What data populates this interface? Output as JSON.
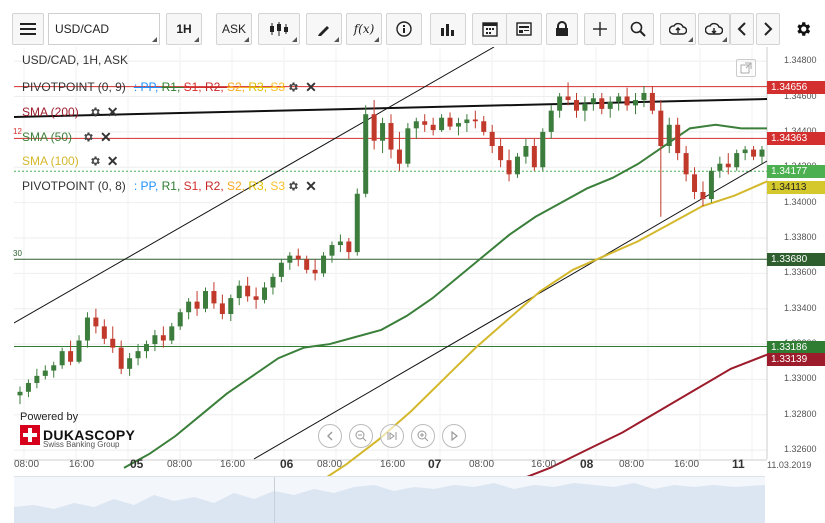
{
  "toolbar": {
    "menu_icon": "hamburger-icon",
    "symbol": "USD/CAD",
    "timeframe": "1H",
    "side": "ASK",
    "fx_label": "f(x)",
    "buttons": [
      "candle-type-icon",
      "draw-pen-icon",
      "indicator-fx-icon",
      "info-icon",
      "bar-chart-icon",
      "calendar-icon",
      "news-icon",
      "lock-icon",
      "crosshair-icon",
      "zoom-icon",
      "cloud-upload-icon",
      "cloud-download-icon",
      "chevron-left-icon",
      "chevron-right-icon",
      "gear-icon"
    ]
  },
  "legend": {
    "title": "USD/CAD, 1H, ASK",
    "pivot1": {
      "name": "PIVOTPOINT (0, 9)",
      "levels": [
        ": PP,",
        "R1,",
        "S1,",
        "R2,",
        "S2,",
        "R3,",
        "S3"
      ]
    },
    "sma200": {
      "name": "SMA (200)"
    },
    "sma50": {
      "name": "SMA (50)"
    },
    "sma100": {
      "name": "SMA (100)"
    },
    "pivot2": {
      "name": "PIVOTPOINT (0, 8)",
      "levels": [
        ": PP,",
        "R1,",
        "S1,",
        "R2,",
        "S2,",
        "R3,",
        "S3"
      ]
    }
  },
  "colors": {
    "pp": "#1e90ff",
    "r1": "#2e7d32",
    "s1": "#d32f2f",
    "r2": "#c62828",
    "s2": "#f9a825",
    "r3": "#e0c000",
    "s3": "#fbc02d",
    "sma200": "#9c1c2c",
    "sma50": "#3a7f3a",
    "sma100": "#d4b82c",
    "up": "#3c7c3c",
    "down": "#c0392b"
  },
  "price_labels": [
    {
      "value": "1.34656",
      "bg": "#d32f2f"
    },
    {
      "value": "1.34363",
      "bg": "#d32f2f"
    },
    {
      "value": "1.34177",
      "bg": "#4caf50"
    },
    {
      "value": "1.34113",
      "bg": "#d4c82c"
    },
    {
      "value": "1.33680",
      "bg": "#2e5e2e"
    },
    {
      "value": "1.33186",
      "bg": "#2e7d32"
    },
    {
      "value": "1.33139",
      "bg": "#9c1c2c"
    }
  ],
  "y_ticks": [
    "1.34800",
    "1.34600",
    "1.34400",
    "1.34200",
    "1.34000",
    "1.33800",
    "1.33600",
    "1.33400",
    "1.33200",
    "1.33000",
    "1.32800",
    "1.32600"
  ],
  "x_ticks": [
    {
      "label": "08:00",
      "bold": false
    },
    {
      "label": "16:00",
      "bold": false
    },
    {
      "label": "05",
      "bold": true
    },
    {
      "label": "08:00",
      "bold": false
    },
    {
      "label": "16:00",
      "bold": false
    },
    {
      "label": "06",
      "bold": true
    },
    {
      "label": "08:00",
      "bold": false
    },
    {
      "label": "16:00",
      "bold": false
    },
    {
      "label": "07",
      "bold": true
    },
    {
      "label": "08:00",
      "bold": false
    },
    {
      "label": "16:00",
      "bold": false
    },
    {
      "label": "08",
      "bold": true
    },
    {
      "label": "08:00",
      "bold": false
    },
    {
      "label": "16:00",
      "bold": false
    },
    {
      "label": "11",
      "bold": true
    },
    {
      "label": "11.03.2019",
      "bold": false
    }
  ],
  "side_marks": {
    "left_top": "12",
    "left_mid": "30"
  },
  "branding": {
    "powered": "Powered by",
    "name": "DUKASCOPY",
    "sub": "Swiss Banking Group"
  },
  "chart_data": {
    "type": "line",
    "ylim": [
      1.3255,
      1.3488
    ],
    "candles": [
      [
        1.3291,
        1.3296,
        1.3286,
        1.3293
      ],
      [
        1.3293,
        1.33,
        1.329,
        1.3298
      ],
      [
        1.3298,
        1.3306,
        1.3295,
        1.3302
      ],
      [
        1.3302,
        1.3308,
        1.33,
        1.3305
      ],
      [
        1.3305,
        1.331,
        1.3301,
        1.3308
      ],
      [
        1.3308,
        1.3318,
        1.3306,
        1.3316
      ],
      [
        1.3316,
        1.3322,
        1.3308,
        1.331
      ],
      [
        1.331,
        1.3325,
        1.3309,
        1.3322
      ],
      [
        1.3322,
        1.3338,
        1.3318,
        1.3335
      ],
      [
        1.3335,
        1.334,
        1.3326,
        1.333
      ],
      [
        1.333,
        1.3334,
        1.332,
        1.3323
      ],
      [
        1.3323,
        1.333,
        1.3315,
        1.3318
      ],
      [
        1.3318,
        1.3322,
        1.3303,
        1.3306
      ],
      [
        1.3306,
        1.3315,
        1.3302,
        1.3312
      ],
      [
        1.3312,
        1.332,
        1.3308,
        1.3316
      ],
      [
        1.3316,
        1.3322,
        1.3312,
        1.332
      ],
      [
        1.332,
        1.3328,
        1.3316,
        1.3325
      ],
      [
        1.3325,
        1.333,
        1.3318,
        1.3322
      ],
      [
        1.3322,
        1.3332,
        1.332,
        1.333
      ],
      [
        1.333,
        1.334,
        1.3328,
        1.3338
      ],
      [
        1.3338,
        1.3346,
        1.3334,
        1.3344
      ],
      [
        1.3344,
        1.335,
        1.3336,
        1.334
      ],
      [
        1.334,
        1.3352,
        1.3338,
        1.335
      ],
      [
        1.335,
        1.3355,
        1.334,
        1.3343
      ],
      [
        1.3343,
        1.3348,
        1.3334,
        1.3337
      ],
      [
        1.3337,
        1.3348,
        1.3333,
        1.3346
      ],
      [
        1.3346,
        1.3356,
        1.3342,
        1.3353
      ],
      [
        1.3353,
        1.3358,
        1.3344,
        1.3347
      ],
      [
        1.3347,
        1.3352,
        1.334,
        1.3345
      ],
      [
        1.3345,
        1.3355,
        1.3343,
        1.3352
      ],
      [
        1.3352,
        1.336,
        1.3348,
        1.3358
      ],
      [
        1.3358,
        1.3368,
        1.3355,
        1.3366
      ],
      [
        1.3366,
        1.3372,
        1.3362,
        1.337
      ],
      [
        1.337,
        1.3374,
        1.3364,
        1.3368
      ],
      [
        1.3368,
        1.337,
        1.336,
        1.3362
      ],
      [
        1.3362,
        1.3368,
        1.3356,
        1.336
      ],
      [
        1.336,
        1.3372,
        1.3358,
        1.337
      ],
      [
        1.337,
        1.3378,
        1.3366,
        1.3376
      ],
      [
        1.3376,
        1.3382,
        1.3372,
        1.3378
      ],
      [
        1.3378,
        1.338,
        1.3368,
        1.3372
      ],
      [
        1.3372,
        1.3408,
        1.337,
        1.3405
      ],
      [
        1.3405,
        1.3455,
        1.3403,
        1.345
      ],
      [
        1.345,
        1.3458,
        1.343,
        1.3435
      ],
      [
        1.3435,
        1.3448,
        1.3428,
        1.3445
      ],
      [
        1.3445,
        1.345,
        1.3425,
        1.343
      ],
      [
        1.343,
        1.344,
        1.3418,
        1.3422
      ],
      [
        1.3422,
        1.3445,
        1.342,
        1.3442
      ],
      [
        1.3442,
        1.3448,
        1.3436,
        1.3446
      ],
      [
        1.3446,
        1.345,
        1.344,
        1.3444
      ],
      [
        1.3444,
        1.3448,
        1.3438,
        1.3441
      ],
      [
        1.3441,
        1.345,
        1.344,
        1.3448
      ],
      [
        1.3448,
        1.3451,
        1.3441,
        1.3443
      ],
      [
        1.3443,
        1.3448,
        1.3438,
        1.3445
      ],
      [
        1.3445,
        1.345,
        1.344,
        1.3447
      ],
      [
        1.3447,
        1.3452,
        1.3442,
        1.3446
      ],
      [
        1.3446,
        1.3449,
        1.3438,
        1.344
      ],
      [
        1.344,
        1.3444,
        1.3428,
        1.3432
      ],
      [
        1.3432,
        1.3436,
        1.342,
        1.3424
      ],
      [
        1.3424,
        1.343,
        1.3412,
        1.3416
      ],
      [
        1.3416,
        1.3428,
        1.3414,
        1.3426
      ],
      [
        1.3426,
        1.3436,
        1.3422,
        1.3432
      ],
      [
        1.3432,
        1.3436,
        1.3418,
        1.342
      ],
      [
        1.342,
        1.3442,
        1.3418,
        1.344
      ],
      [
        1.344,
        1.3455,
        1.3436,
        1.3452
      ],
      [
        1.3452,
        1.3462,
        1.3448,
        1.346
      ],
      [
        1.346,
        1.3468,
        1.3455,
        1.3458
      ],
      [
        1.3458,
        1.3462,
        1.3448,
        1.3452
      ],
      [
        1.3452,
        1.346,
        1.3446,
        1.3456
      ],
      [
        1.3456,
        1.3462,
        1.3452,
        1.3459
      ],
      [
        1.3459,
        1.3462,
        1.345,
        1.3453
      ],
      [
        1.3453,
        1.346,
        1.3448,
        1.3457
      ],
      [
        1.3457,
        1.3462,
        1.3452,
        1.346
      ],
      [
        1.346,
        1.3465,
        1.3452,
        1.3455
      ],
      [
        1.3455,
        1.3462,
        1.345,
        1.3458
      ],
      [
        1.3458,
        1.3466,
        1.3454,
        1.3462
      ],
      [
        1.3462,
        1.3466,
        1.345,
        1.3452
      ],
      [
        1.3452,
        1.3458,
        1.3392,
        1.3432
      ],
      [
        1.3432,
        1.3448,
        1.3428,
        1.3444
      ],
      [
        1.3444,
        1.3448,
        1.3424,
        1.3428
      ],
      [
        1.3428,
        1.3432,
        1.3412,
        1.3416
      ],
      [
        1.3416,
        1.342,
        1.3402,
        1.3406
      ],
      [
        1.3406,
        1.3412,
        1.3398,
        1.3402
      ],
      [
        1.3402,
        1.342,
        1.34,
        1.3418
      ],
      [
        1.3418,
        1.3426,
        1.3414,
        1.3422
      ],
      [
        1.3422,
        1.3428,
        1.3416,
        1.342
      ],
      [
        1.342,
        1.343,
        1.3418,
        1.3428
      ],
      [
        1.3428,
        1.3432,
        1.3424,
        1.343
      ],
      [
        1.343,
        1.3432,
        1.3424,
        1.3426
      ],
      [
        1.3426,
        1.3432,
        1.3422,
        1.343
      ]
    ],
    "sma50": [
      1.325,
      1.3258,
      1.3268,
      1.328,
      1.3292,
      1.3302,
      1.3312,
      1.3318,
      1.332,
      1.3324,
      1.3328,
      1.3336,
      1.3346,
      1.3358,
      1.337,
      1.3382,
      1.3392,
      1.34,
      1.3408,
      1.3414,
      1.3422,
      1.3432,
      1.3442,
      1.3444,
      1.3442,
      1.3442
    ],
    "sma100": [
      1.324,
      1.3252,
      1.3266,
      1.3282,
      1.33,
      1.3318,
      1.3334,
      1.335,
      1.3362,
      1.337,
      1.3378,
      1.3388,
      1.3398,
      1.3404,
      1.3412
    ],
    "sma200": [
      1.3242,
      1.325,
      1.326,
      1.327,
      1.3282,
      1.3294,
      1.3306,
      1.3314
    ],
    "horizontal_levels": [
      1.34656,
      1.34363,
      1.34177,
      1.3368,
      1.33186
    ]
  }
}
